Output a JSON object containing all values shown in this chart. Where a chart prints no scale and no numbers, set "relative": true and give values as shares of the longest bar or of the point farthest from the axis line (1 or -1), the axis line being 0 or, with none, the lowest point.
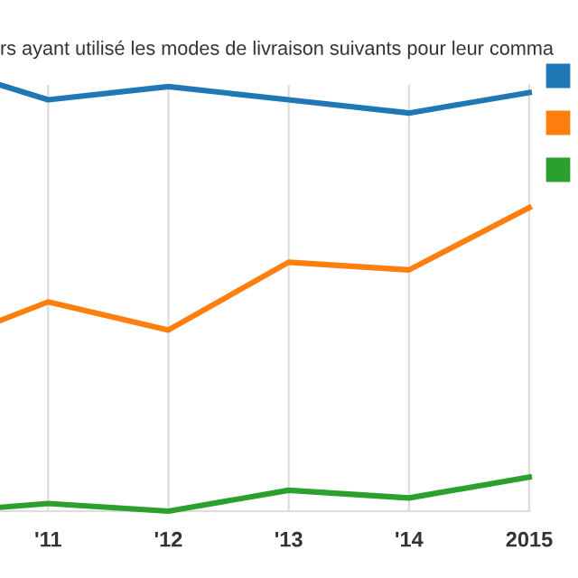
{
  "chart_data": {
    "type": "line",
    "title": "rs ayant utilisé les modes de livraison suivants pour leur comma",
    "relative": true,
    "x": [
      2010.6,
      2011,
      2012,
      2013,
      2014,
      2015
    ],
    "xlim": [
      2010.6,
      2015
    ],
    "xticks": [
      {
        "value": 2011,
        "label": "'11"
      },
      {
        "value": 2012,
        "label": "'12"
      },
      {
        "value": 2013,
        "label": "'13"
      },
      {
        "value": 2014,
        "label": "'14"
      },
      {
        "value": 2015,
        "label": "2015"
      }
    ],
    "series": [
      {
        "color": "#1f77b4",
        "values": [
          1,
          0.965,
          0.996,
          0.965,
          0.934,
          0.982
        ]
      },
      {
        "color": "#ff7f0e",
        "values": [
          0.447,
          0.491,
          0.425,
          0.584,
          0.566,
          0.712
        ]
      },
      {
        "color": "#2ca02c",
        "values": [
          0.009,
          0.018,
          0,
          0.049,
          0.031,
          0.08
        ]
      }
    ],
    "grid": "x",
    "marker": "none",
    "line_style": "solid"
  }
}
